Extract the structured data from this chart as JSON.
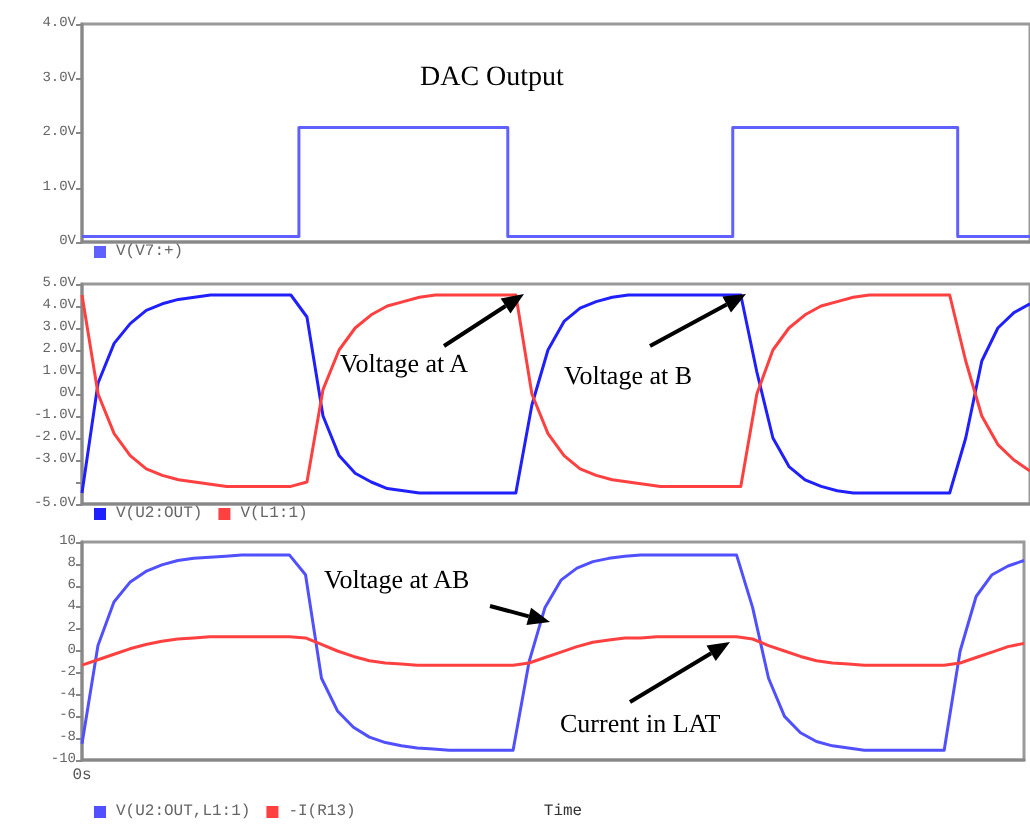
{
  "chart_data": [
    {
      "type": "step",
      "title": "DAC Output",
      "categories": [
        null,
        null,
        null,
        null,
        null,
        null,
        null,
        null,
        null,
        null,
        null,
        null,
        null,
        null,
        null,
        null,
        null,
        null,
        null,
        null,
        null,
        null,
        null,
        null,
        null,
        null,
        null,
        null,
        null,
        null,
        null,
        null,
        null,
        null,
        null,
        null,
        null,
        null,
        null,
        null,
        null,
        null,
        null,
        null,
        null,
        null,
        null,
        null,
        null,
        null,
        null,
        null,
        null,
        null,
        null,
        null,
        null,
        null,
        null,
        null
      ],
      "series": [
        {
          "name": "V(V7:+)",
          "color": "#6060ff",
          "values": [
            0.1,
            0.1,
            0.1,
            0.1,
            0.1,
            0.1,
            0.1,
            0.1,
            0.1,
            0.1,
            0.1,
            0.1,
            0.1,
            0.1,
            2.1,
            2.1,
            2.1,
            2.1,
            2.1,
            2.1,
            2.1,
            2.1,
            2.1,
            2.1,
            2.1,
            2.1,
            2.1,
            0.1,
            0.1,
            0.1,
            0.1,
            0.1,
            0.1,
            0.1,
            0.1,
            0.1,
            0.1,
            0.1,
            0.1,
            0.1,
            0.1,
            2.1,
            2.1,
            2.1,
            2.1,
            2.1,
            2.1,
            2.1,
            2.1,
            2.1,
            2.1,
            2.1,
            2.1,
            2.1,
            2.1,
            0.1,
            0.1,
            0.1,
            0.1,
            0.1
          ]
        }
      ],
      "ylim": [
        0,
        4
      ],
      "yticks": [
        {
          "value": 0,
          "label": "0V"
        },
        {
          "value": 1,
          "label": "1.0V"
        },
        {
          "value": 2,
          "label": "2.0V"
        },
        {
          "value": 3,
          "label": "3.0V"
        },
        {
          "value": 4,
          "label": "4.0V"
        }
      ],
      "tick_labels": "y",
      "grid": false,
      "legend": "bottom left"
    },
    {
      "type": "line",
      "categories": [
        null,
        null,
        null,
        null,
        null,
        null,
        null,
        null,
        null,
        null,
        null,
        null,
        null,
        null,
        null,
        null,
        null,
        null,
        null,
        null,
        null,
        null,
        null,
        null,
        null,
        null,
        null,
        null,
        null,
        null,
        null,
        null,
        null,
        null,
        null,
        null,
        null,
        null,
        null,
        null,
        null,
        null,
        null,
        null,
        null,
        null,
        null,
        null,
        null,
        null,
        null,
        null,
        null,
        null,
        null,
        null,
        null,
        null,
        null,
        null
      ],
      "series": [
        {
          "name": "V(U2:OUT)",
          "color": "#2020ff",
          "values": [
            -4.5,
            0.5,
            2.3,
            3.2,
            3.8,
            4.1,
            4.3,
            4.4,
            4.5,
            4.5,
            4.5,
            4.5,
            4.5,
            4.5,
            3.5,
            -1.0,
            -2.8,
            -3.6,
            -4.0,
            -4.3,
            -4.4,
            -4.5,
            -4.5,
            -4.5,
            -4.5,
            -4.5,
            -4.5,
            -4.5,
            -0.5,
            2.0,
            3.3,
            3.9,
            4.2,
            4.4,
            4.5,
            4.5,
            4.5,
            4.5,
            4.5,
            4.5,
            4.5,
            4.5,
            1.0,
            -2.0,
            -3.3,
            -3.9,
            -4.2,
            -4.4,
            -4.5,
            -4.5,
            -4.5,
            -4.5,
            -4.5,
            -4.5,
            -4.5,
            -2.0,
            1.5,
            3.0,
            3.7,
            4.1
          ]
        },
        {
          "name": "V(L1:1)",
          "color": "#ff4040",
          "values": [
            4.5,
            0.0,
            -1.8,
            -2.8,
            -3.4,
            -3.7,
            -3.9,
            -4.0,
            -4.1,
            -4.2,
            -4.2,
            -4.2,
            -4.2,
            -4.2,
            -4.0,
            0.2,
            2.0,
            3.0,
            3.6,
            4.0,
            4.2,
            4.4,
            4.5,
            4.5,
            4.5,
            4.5,
            4.5,
            4.5,
            0.0,
            -1.8,
            -2.8,
            -3.4,
            -3.7,
            -3.9,
            -4.0,
            -4.1,
            -4.2,
            -4.2,
            -4.2,
            -4.2,
            -4.2,
            -4.2,
            0.0,
            2.0,
            3.0,
            3.6,
            4.0,
            4.2,
            4.4,
            4.5,
            4.5,
            4.5,
            4.5,
            4.5,
            4.5,
            1.5,
            -1.0,
            -2.3,
            -3.0,
            -3.5
          ]
        }
      ],
      "ylim": [
        -5,
        5
      ],
      "yticks": [
        {
          "value": -5,
          "label": "-5.0V"
        },
        {
          "value": -4,
          "label": null
        },
        {
          "value": -3,
          "label": "-3.0V"
        },
        {
          "value": -2,
          "label": "-2.0V"
        },
        {
          "value": -1,
          "label": "-1.0V"
        },
        {
          "value": 0,
          "label": "0V"
        },
        {
          "value": 1,
          "label": "1.0V"
        },
        {
          "value": 2,
          "label": "2.0V"
        },
        {
          "value": 3,
          "label": "3.0V"
        },
        {
          "value": 4,
          "label": "4.0V"
        },
        {
          "value": 5,
          "label": "5.0V"
        }
      ],
      "annotations": [
        "Voltage at A",
        "Voltage at B"
      ],
      "tick_labels": "y",
      "grid": false,
      "legend": "bottom left"
    },
    {
      "type": "line",
      "xlabel": "Time",
      "categories": [
        "0s",
        null,
        null,
        null,
        null,
        null,
        null,
        null,
        null,
        null,
        null,
        null,
        null,
        null,
        null,
        null,
        null,
        null,
        null,
        null,
        null,
        null,
        null,
        null,
        null,
        null,
        null,
        null,
        null,
        null,
        null,
        null,
        null,
        null,
        null,
        null,
        null,
        null,
        null,
        null,
        null,
        null,
        null,
        null,
        null,
        null,
        null,
        null,
        null,
        null,
        null,
        null,
        null,
        null,
        null,
        null,
        null,
        null,
        null,
        null
      ],
      "series": [
        {
          "name": "V(U2:OUT,L1:1)",
          "color": "#5050ff",
          "values": [
            -8.5,
            0.5,
            4.5,
            6.3,
            7.3,
            7.9,
            8.3,
            8.5,
            8.6,
            8.7,
            8.8,
            8.8,
            8.8,
            8.8,
            7.0,
            -2.5,
            -5.5,
            -7.0,
            -7.9,
            -8.4,
            -8.7,
            -8.9,
            -9.0,
            -9.1,
            -9.1,
            -9.1,
            -9.1,
            -9.1,
            -1.0,
            4.0,
            6.5,
            7.6,
            8.2,
            8.5,
            8.7,
            8.8,
            8.8,
            8.8,
            8.8,
            8.8,
            8.8,
            8.8,
            4.0,
            -2.5,
            -6.0,
            -7.5,
            -8.3,
            -8.7,
            -8.9,
            -9.1,
            -9.1,
            -9.1,
            -9.1,
            -9.1,
            -9.1,
            0.0,
            5.0,
            7.0,
            7.8,
            8.3
          ]
        },
        {
          "name": "-I(R13)",
          "color": "#ff4040",
          "values": [
            -1.3,
            -0.8,
            -0.3,
            0.2,
            0.6,
            0.9,
            1.1,
            1.2,
            1.3,
            1.3,
            1.3,
            1.3,
            1.3,
            1.3,
            1.2,
            0.6,
            0.0,
            -0.5,
            -0.9,
            -1.1,
            -1.2,
            -1.3,
            -1.3,
            -1.3,
            -1.3,
            -1.3,
            -1.3,
            -1.3,
            -1.1,
            -0.6,
            -0.1,
            0.4,
            0.8,
            1.0,
            1.2,
            1.2,
            1.3,
            1.3,
            1.3,
            1.3,
            1.3,
            1.3,
            1.1,
            0.5,
            0.0,
            -0.5,
            -0.9,
            -1.1,
            -1.2,
            -1.3,
            -1.3,
            -1.3,
            -1.3,
            -1.3,
            -1.3,
            -1.1,
            -0.6,
            -0.1,
            0.4,
            0.7
          ]
        }
      ],
      "ylim": [
        -10,
        10
      ],
      "yticks": [
        -10,
        -8,
        -6,
        -4,
        -2,
        0,
        2,
        4,
        6,
        8,
        10
      ],
      "annotations": [
        "Voltage at AB",
        "Current in LAT"
      ],
      "grid": false,
      "legend": "bottom left"
    }
  ]
}
